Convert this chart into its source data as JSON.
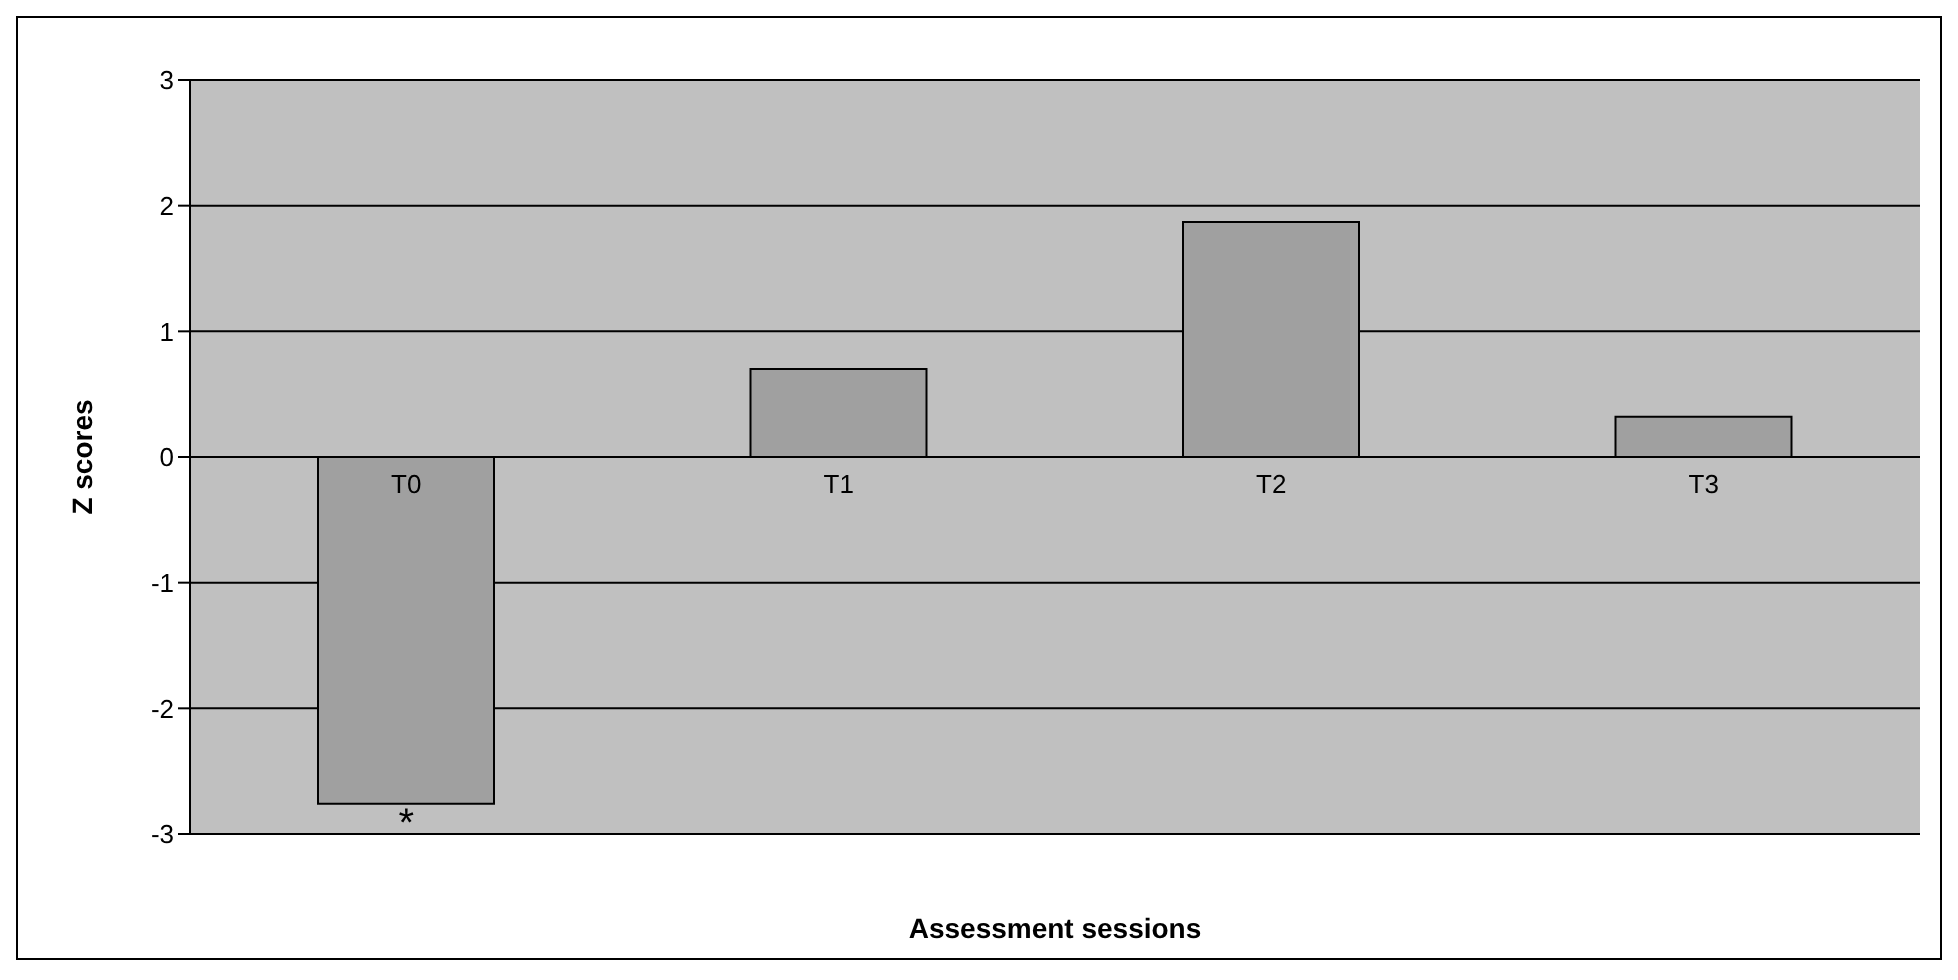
{
  "chart_data": {
    "type": "bar",
    "xlabel": "Assessment sessions",
    "ylabel": "Z scores",
    "categories": [
      "T0",
      "T1",
      "T2",
      "T3"
    ],
    "values": [
      -2.76,
      0.7,
      1.87,
      0.32
    ],
    "color": "#a0a0a0",
    "ylim": [
      -3,
      3
    ],
    "yticks": [
      -3,
      -2,
      -1,
      0,
      1,
      2,
      3
    ],
    "grid": "y",
    "annotations": [
      {
        "text": "*",
        "x": "T0",
        "y": -2.76
      }
    ]
  }
}
